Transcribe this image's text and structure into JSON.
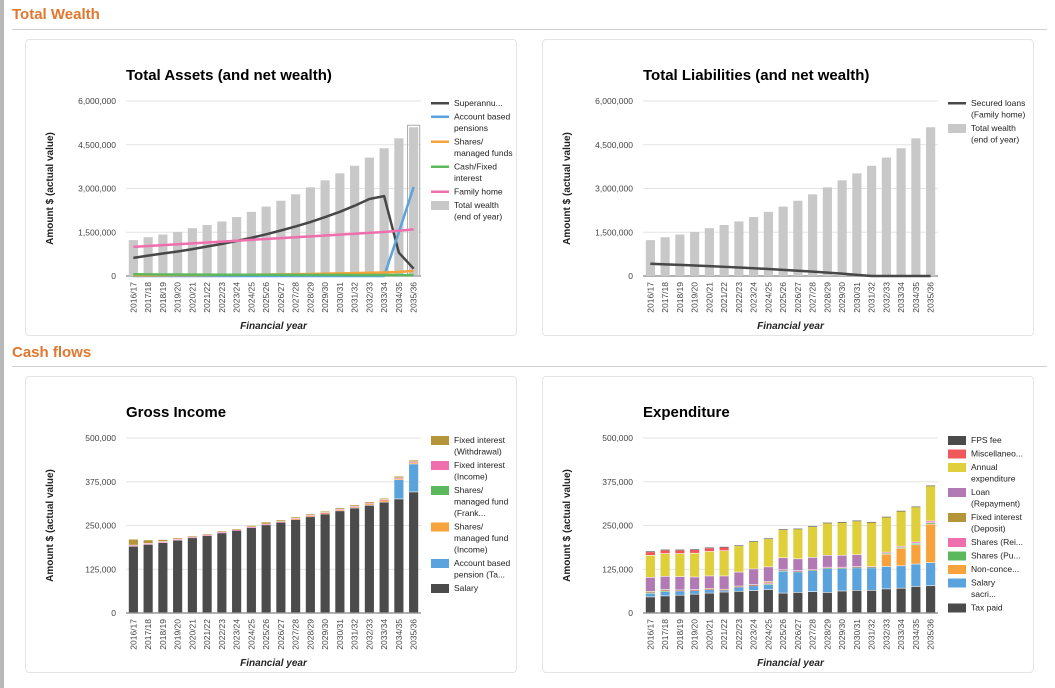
{
  "sections": [
    {
      "title": "Total Wealth"
    },
    {
      "title": "Cash flows"
    }
  ],
  "years": [
    "2016/17",
    "2017/18",
    "2018/19",
    "2019/20",
    "2020/21",
    "2021/22",
    "2022/23",
    "2023/24",
    "2024/25",
    "2025/26",
    "2026/27",
    "2027/28",
    "2028/29",
    "2029/30",
    "2030/31",
    "2031/32",
    "2032/33",
    "2033/34",
    "2034/35",
    "2035/36"
  ],
  "chart_data": [
    {
      "id": "assets",
      "type": "bar",
      "title": "Total Assets (and net wealth)",
      "xlabel": "Financial year",
      "ylabel": "Amount $ (actual value)",
      "ylim": [
        0,
        6000000
      ],
      "yticks": [
        "0",
        "1,500,000",
        "3,000,000",
        "4,500,000",
        "6,000,000"
      ],
      "ytick_values": [
        0,
        1500000,
        3000000,
        4500000,
        6000000
      ],
      "grid": true,
      "legend": "right",
      "bars": {
        "name": "Total wealth (end of year)",
        "color": "#c8c8c8",
        "values": [
          1230000,
          1330000,
          1420000,
          1510000,
          1640000,
          1750000,
          1870000,
          2020000,
          2200000,
          2380000,
          2580000,
          2800000,
          3040000,
          3280000,
          3520000,
          3780000,
          4060000,
          4380000,
          4720000,
          5100000
        ]
      },
      "lines": [
        {
          "name": "Superannu...",
          "color": "#474747",
          "values": [
            620000,
            700000,
            770000,
            840000,
            920000,
            1010000,
            1100000,
            1200000,
            1310000,
            1430000,
            1560000,
            1700000,
            1850000,
            2020000,
            2200000,
            2410000,
            2640000,
            2740000,
            800000,
            250000
          ]
        },
        {
          "name": "Account based pensions",
          "color": "#5ba3dc",
          "values": [
            0,
            0,
            0,
            0,
            0,
            0,
            0,
            0,
            0,
            0,
            0,
            0,
            0,
            0,
            0,
            0,
            0,
            0,
            1500000,
            3050000
          ]
        },
        {
          "name": "Shares/ managed funds",
          "color": "#f7a23b",
          "values": [
            20000,
            22000,
            25000,
            28000,
            30000,
            33000,
            37000,
            40000,
            45000,
            50000,
            55000,
            62000,
            70000,
            80000,
            90000,
            100000,
            110000,
            120000,
            140000,
            170000
          ]
        },
        {
          "name": "Cash/Fixed interest",
          "color": "#5bb85d",
          "values": [
            60000,
            55000,
            52000,
            50000,
            48000,
            46000,
            45000,
            44000,
            43000,
            42000,
            41000,
            40000,
            39000,
            38000,
            37000,
            36000,
            35000,
            34000,
            33000,
            32000
          ]
        },
        {
          "name": "Family home",
          "color": "#ef6fae",
          "values": [
            1000000,
            1030000,
            1060000,
            1090000,
            1120000,
            1150000,
            1180000,
            1210000,
            1240000,
            1270000,
            1300000,
            1330000,
            1360000,
            1390000,
            1420000,
            1450000,
            1480000,
            1510000,
            1550000,
            1600000
          ]
        }
      ],
      "legend_entries": [
        {
          "label": "Superannu...",
          "kind": "line",
          "color": "#474747"
        },
        {
          "label": "Account based pensions",
          "kind": "line",
          "color": "#5ba3dc"
        },
        {
          "label": "Shares/ managed funds",
          "kind": "line",
          "color": "#f7a23b"
        },
        {
          "label": "Cash/Fixed interest",
          "kind": "line",
          "color": "#5bb85d"
        },
        {
          "label": "Family home",
          "kind": "line",
          "color": "#ef6fae"
        },
        {
          "label": "Total wealth (end of year)",
          "kind": "box",
          "color": "#c8c8c8"
        }
      ]
    },
    {
      "id": "liabilities",
      "type": "bar",
      "title": "Total Liabilities (and net wealth)",
      "xlabel": "Financial year",
      "ylabel": "Amount $ (actual value)",
      "ylim": [
        0,
        6000000
      ],
      "yticks": [
        "0",
        "1,500,000",
        "3,000,000",
        "4,500,000",
        "6,000,000"
      ],
      "ytick_values": [
        0,
        1500000,
        3000000,
        4500000,
        6000000
      ],
      "grid": true,
      "legend": "right",
      "bars": {
        "name": "Total wealth (end of year)",
        "color": "#c8c8c8",
        "values": [
          1230000,
          1330000,
          1420000,
          1510000,
          1640000,
          1750000,
          1870000,
          2020000,
          2200000,
          2380000,
          2580000,
          2800000,
          3040000,
          3280000,
          3520000,
          3780000,
          4060000,
          4380000,
          4720000,
          5100000
        ]
      },
      "lines": [
        {
          "name": "Secured loans (Family home)",
          "color": "#474747",
          "values": [
            420000,
            400000,
            380000,
            360000,
            340000,
            315000,
            290000,
            265000,
            240000,
            210000,
            180000,
            150000,
            115000,
            80000,
            40000,
            0,
            0,
            0,
            0,
            0
          ]
        }
      ],
      "legend_entries": [
        {
          "label": "Secured loans (Family home)",
          "kind": "line",
          "color": "#474747"
        },
        {
          "label": "Total wealth (end of year)",
          "kind": "box",
          "color": "#c8c8c8"
        }
      ]
    },
    {
      "id": "income",
      "type": "bar",
      "stacked": true,
      "title": "Gross Income",
      "xlabel": "Financial year",
      "ylabel": "Amount $ (actual value)",
      "ylim": [
        0,
        500000
      ],
      "yticks": [
        "0",
        "125,000",
        "250,000",
        "375,000",
        "500,000"
      ],
      "ytick_values": [
        0,
        125000,
        250000,
        375000,
        500000
      ],
      "grid": true,
      "legend": "right",
      "series": [
        {
          "name": "Salary",
          "color": "#4b4b4b",
          "values": [
            190000,
            195000,
            200000,
            207000,
            214000,
            220000,
            228000,
            235000,
            243000,
            251000,
            258000,
            266000,
            274000,
            282000,
            291000,
            299000,
            307000,
            316000,
            325000,
            345000
          ]
        },
        {
          "name": "Account based pension (Ta...",
          "color": "#5ba3dc",
          "values": [
            0,
            0,
            0,
            0,
            0,
            0,
            0,
            0,
            0,
            0,
            0,
            0,
            0,
            0,
            0,
            0,
            0,
            0,
            55000,
            80000
          ]
        },
        {
          "name": "Shares/ managed fund (Income)",
          "color": "#f7a23b",
          "values": [
            0,
            0,
            0,
            0,
            0,
            0,
            0,
            0,
            0,
            0,
            0,
            1500,
            2000,
            2000,
            2500,
            3000,
            4000,
            5000,
            3000,
            4000
          ]
        },
        {
          "name": "Shares/ managed fund (Frank...",
          "color": "#5bb85d",
          "values": [
            0,
            0,
            0,
            0,
            0,
            0,
            0,
            0,
            0,
            0,
            0,
            0,
            0,
            0,
            0,
            0,
            0,
            0,
            0,
            0
          ]
        },
        {
          "name": "Fixed interest (Income)",
          "color": "#ef6fae",
          "values": [
            3000,
            3000,
            3000,
            2500,
            2500,
            2500,
            2500,
            2000,
            2000,
            2000,
            2000,
            2000,
            2000,
            2000,
            2000,
            2000,
            2000,
            2000,
            2000,
            2000
          ]
        },
        {
          "name": "Fixed interest (Withdrawal)",
          "color": "#b5953a",
          "values": [
            17000,
            10000,
            6000,
            4000,
            3000,
            3000,
            3000,
            3000,
            4000,
            6000,
            5000,
            4000,
            4000,
            4000,
            4000,
            4000,
            4000,
            4000,
            5000,
            5000
          ]
        }
      ],
      "legend_entries": [
        {
          "label": "Fixed interest (Withdrawal)",
          "kind": "box",
          "color": "#b5953a"
        },
        {
          "label": "Fixed interest (Income)",
          "kind": "box",
          "color": "#ef6fae"
        },
        {
          "label": "Shares/ managed fund (Frank...",
          "kind": "box",
          "color": "#5bb85d"
        },
        {
          "label": "Shares/ managed fund (Income)",
          "kind": "box",
          "color": "#f7a23b"
        },
        {
          "label": "Account based pension (Ta...",
          "kind": "box",
          "color": "#5ba3dc"
        },
        {
          "label": "Salary",
          "kind": "box",
          "color": "#4b4b4b"
        }
      ]
    },
    {
      "id": "expenditure",
      "type": "bar",
      "stacked": true,
      "title": "Expenditure",
      "xlabel": "Financial year",
      "ylabel": "Amount $ (actual value)",
      "ylim": [
        0,
        500000
      ],
      "yticks": [
        "0",
        "125,000",
        "250,000",
        "375,000",
        "500,000"
      ],
      "ytick_values": [
        0,
        125000,
        250000,
        375000,
        500000
      ],
      "grid": true,
      "legend": "right",
      "series": [
        {
          "name": "Tax paid",
          "color": "#4b4b4b",
          "values": [
            45000,
            48000,
            50000,
            53000,
            56000,
            59000,
            61000,
            63000,
            66000,
            56000,
            58000,
            60000,
            58000,
            62000,
            64000,
            64000,
            68000,
            70000,
            75000,
            77000
          ]
        },
        {
          "name": "Salary sacri...",
          "color": "#5ba3dc",
          "values": [
            10000,
            12000,
            12000,
            10000,
            10000,
            5000,
            12000,
            14000,
            14000,
            62000,
            58000,
            60000,
            68000,
            64000,
            64000,
            64000,
            64000,
            64000,
            64000,
            66000
          ]
        },
        {
          "name": "Non-conce...",
          "color": "#f7a23b",
          "values": [
            0,
            0,
            0,
            0,
            0,
            0,
            0,
            0,
            0,
            0,
            0,
            0,
            0,
            0,
            0,
            0,
            35000,
            50000,
            55000,
            110000
          ]
        },
        {
          "name": "Shares (Pu...",
          "color": "#5bb85d",
          "values": [
            3000,
            3000,
            0,
            0,
            0,
            0,
            0,
            0,
            3000,
            3000,
            2000,
            2000,
            2000,
            2000,
            2000,
            2000,
            3000,
            3000,
            4000,
            4000
          ]
        },
        {
          "name": "Shares (Rei...",
          "color": "#ef6fae",
          "values": [
            2000,
            2000,
            2000,
            2000,
            2000,
            2000,
            2000,
            2000,
            2000,
            2000,
            2000,
            2000,
            2000,
            2000,
            2000,
            2000,
            3000,
            3000,
            4000,
            5000
          ]
        },
        {
          "name": "Fixed interest (Deposit)",
          "color": "#b5953a",
          "values": [
            1000,
            1000,
            1000,
            1000,
            1000,
            1000,
            1000,
            1000,
            4000,
            0,
            0,
            0,
            0,
            0,
            0,
            0,
            0,
            0,
            0,
            0
          ]
        },
        {
          "name": "Loan (Repayment)",
          "color": "#b27ab4",
          "values": [
            40000,
            38000,
            38000,
            36000,
            36000,
            38000,
            40000,
            45000,
            42000,
            34000,
            34000,
            34000,
            34000,
            34000,
            34000,
            0,
            0,
            0,
            0,
            0
          ]
        },
        {
          "name": "Annual expenditure",
          "color": "#dfcf3a",
          "values": [
            63000,
            65000,
            66000,
            68000,
            70000,
            72000,
            75000,
            78000,
            80000,
            80000,
            85000,
            88000,
            92000,
            94000,
            96000,
            126000,
            100000,
            100000,
            100000,
            100000
          ]
        },
        {
          "name": "Miscellaneo...",
          "color": "#f1585a",
          "values": [
            10000,
            10000,
            10000,
            10000,
            10000,
            10000,
            0,
            0,
            0,
            0,
            0,
            0,
            0,
            0,
            0,
            0,
            0,
            0,
            0,
            0
          ]
        },
        {
          "name": "FPS fee",
          "color": "#4b4b4b",
          "values": [
            2000,
            2000,
            2000,
            2000,
            2000,
            2000,
            2000,
            2000,
            2000,
            2000,
            2000,
            2000,
            2000,
            2000,
            2000,
            2000,
            2000,
            2000,
            2000,
            2000
          ]
        }
      ],
      "legend_entries": [
        {
          "label": "FPS fee",
          "kind": "box",
          "color": "#4b4b4b"
        },
        {
          "label": "Miscellaneo...",
          "kind": "box",
          "color": "#f1585a"
        },
        {
          "label": "Annual expenditure",
          "kind": "box",
          "color": "#dfcf3a"
        },
        {
          "label": "Loan (Repayment)",
          "kind": "box",
          "color": "#b27ab4"
        },
        {
          "label": "Fixed interest (Deposit)",
          "kind": "box",
          "color": "#b5953a"
        },
        {
          "label": "Shares (Rei...",
          "kind": "box",
          "color": "#ef6fae"
        },
        {
          "label": "Shares (Pu...",
          "kind": "box",
          "color": "#5bb85d"
        },
        {
          "label": "Non-conce...",
          "kind": "box",
          "color": "#f7a23b"
        },
        {
          "label": "Salary sacri...",
          "kind": "box",
          "color": "#5ba3dc"
        },
        {
          "label": "Tax paid",
          "kind": "box",
          "color": "#4b4b4b"
        }
      ]
    }
  ]
}
